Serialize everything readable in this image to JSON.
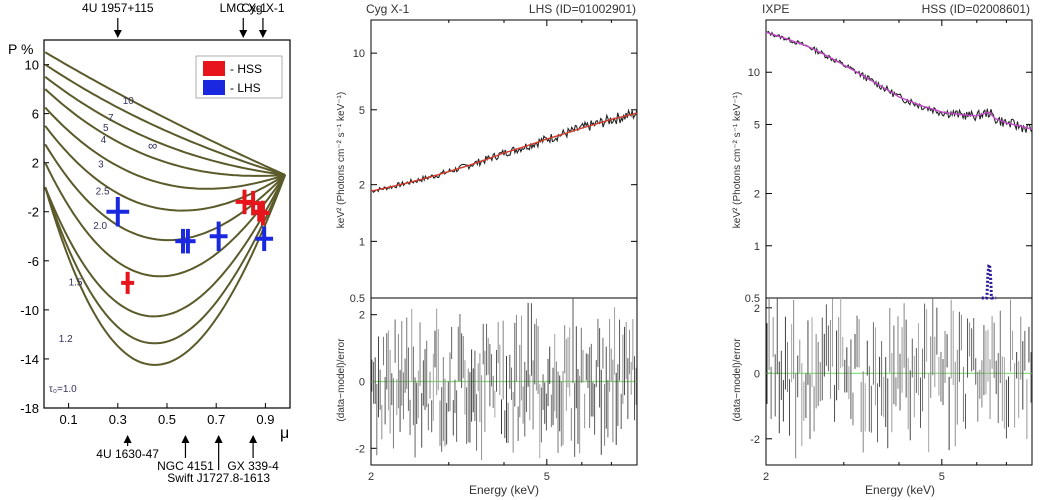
{
  "chart_data": [
    {
      "type": "line",
      "title": "",
      "ylabel": "P %",
      "xlabel": "μ",
      "xlim": [
        0,
        1
      ],
      "ylim": [
        -18,
        12
      ],
      "xticks": [
        0.1,
        0.3,
        0.5,
        0.7,
        0.9
      ],
      "xtick_labels": [
        "0.1",
        "0.3",
        "0.5",
        "0.7",
        "0.9"
      ],
      "yticks": [
        10,
        6,
        2,
        -2,
        -6,
        -10,
        -14,
        -18
      ],
      "ytick_labels": [
        "10",
        "6",
        "2",
        "-2",
        "-6",
        "-10",
        "-14",
        "-18"
      ],
      "curves": [
        {
          "label": "τ₀=1.0",
          "end": 0,
          "depth": 17.0
        },
        {
          "label": "1.2",
          "end": 0,
          "depth": 15.0
        },
        {
          "label": "",
          "end": 0,
          "depth": 12.5
        },
        {
          "label": "1.5",
          "end": 2.0,
          "depth": 10.0
        },
        {
          "label": "2.0",
          "end": 3.5,
          "depth": 7.5
        },
        {
          "label": "2.5",
          "end": 5.0,
          "depth": 5.5
        },
        {
          "label": "3",
          "end": 6.5,
          "depth": 4.0
        },
        {
          "label": "4",
          "end": 8.0,
          "depth": 2.8
        },
        {
          "label": "5",
          "end": 9.0,
          "depth": 1.8
        },
        {
          "label": "7",
          "end": 10.0,
          "depth": 1.0
        },
        {
          "label": "10",
          "end": 11.0,
          "depth": 0.4
        }
      ],
      "curve_end": {
        "mu": 0.98,
        "p": 1.0
      },
      "inf_label": "∞",
      "tau_label_positions": [
        {
          "label": "10",
          "mu": 0.32,
          "p": 6.8
        },
        {
          "label": "7",
          "mu": 0.26,
          "p": 5.4
        },
        {
          "label": "5",
          "mu": 0.24,
          "p": 4.6
        },
        {
          "label": "4",
          "mu": 0.23,
          "p": 3.6
        },
        {
          "label": "3",
          "mu": 0.22,
          "p": 1.6
        },
        {
          "label": "2.5",
          "mu": 0.21,
          "p": -0.6
        },
        {
          "label": "2.0",
          "mu": 0.2,
          "p": -3.4
        },
        {
          "label": "1.5",
          "mu": 0.1,
          "p": -8.0
        },
        {
          "label": "1.2",
          "mu": 0.06,
          "p": -12.6
        },
        {
          "label": "τ₀=1.0",
          "mu": 0.02,
          "p": -16.7
        }
      ],
      "hss_points": [
        {
          "mu": 0.34,
          "p": -7.8,
          "ex": 0.01,
          "ey": 0.9
        },
        {
          "mu": 0.815,
          "p": -1.2,
          "ex": 0.02,
          "ey": 1.0
        },
        {
          "mu": 0.85,
          "p": -1.3,
          "ex": 0.015,
          "ey": 1.0
        },
        {
          "mu": 0.875,
          "p": -2.0,
          "ex": 0.015,
          "ey": 0.8
        },
        {
          "mu": 0.89,
          "p": -2.1,
          "ex": 0.01,
          "ey": 1.0
        }
      ],
      "lhs_points": [
        {
          "mu": 0.3,
          "p": -2.0,
          "ex": 0.03,
          "ey": 1.2
        },
        {
          "mu": 0.565,
          "p": -4.4,
          "ex": 0.015,
          "ey": 1.0
        },
        {
          "mu": 0.585,
          "p": -4.4,
          "ex": 0.015,
          "ey": 1.0
        },
        {
          "mu": 0.71,
          "p": -4.0,
          "ex": 0.02,
          "ey": 1.2
        },
        {
          "mu": 0.895,
          "p": -4.2,
          "ex": 0.02,
          "ey": 1.0
        }
      ],
      "legend": [
        {
          "name": "- HSS",
          "color": "#e8141c"
        },
        {
          "name": "- LHS",
          "color": "#1a29e0"
        }
      ],
      "top_annotations": [
        {
          "label": "4U 1957+115",
          "mu": 0.3
        },
        {
          "label": "LMC X-1",
          "mu": 0.81
        },
        {
          "label": "Cyg X-1",
          "mu": 0.89
        }
      ],
      "bottom_annotations": [
        {
          "label": "4U 1630-47",
          "mu": 0.34,
          "row": 1
        },
        {
          "label": "NGC 4151",
          "mu": 0.575,
          "row": 2
        },
        {
          "label": "Swift J1727.8-1613",
          "mu": 0.71,
          "row": 3
        },
        {
          "label": "GX 339-4",
          "mu": 0.85,
          "row": 2
        }
      ]
    },
    {
      "type": "line",
      "title_left": "Cyg X-1",
      "title_right": "LHS (ID=01002901)",
      "xlabel": "Energy (keV)",
      "ylabel_top": "keV² (Photons cm⁻² s⁻¹ keV⁻¹)",
      "ylabel_bottom": "(data−model)/error",
      "xlim": [
        2,
        8
      ],
      "ylim_top": [
        0.5,
        15
      ],
      "ylim_bottom": [
        -2.5,
        2.5
      ],
      "xticks": [
        2,
        5
      ],
      "yticks_top": [
        0.5,
        1,
        2,
        5,
        10
      ],
      "yticks_bottom": [
        -2,
        0,
        2
      ],
      "spectrum": [
        [
          2.0,
          1.85
        ],
        [
          3.0,
          2.35
        ],
        [
          4.0,
          2.95
        ],
        [
          5.0,
          3.5
        ],
        [
          6.0,
          4.0
        ],
        [
          7.0,
          4.45
        ],
        [
          8.0,
          4.8
        ]
      ],
      "residual_seed": 7,
      "residual_points": 160
    },
    {
      "type": "line",
      "title_left": "IXPE",
      "title_right": "HSS (ID=02008601)",
      "xlabel": "Energy (keV)",
      "ylabel_top": "keV² (Photons cm⁻² s⁻¹ keV⁻¹)",
      "ylabel_bottom": "(data−model)/error",
      "xlim": [
        2,
        8
      ],
      "ylim_top": [
        0.5,
        20
      ],
      "ylim_bottom": [
        -2.8,
        2.3
      ],
      "xticks": [
        2,
        5
      ],
      "yticks_top": [
        0.5,
        1,
        2,
        5,
        10
      ],
      "yticks_bottom": [
        -2,
        0,
        2
      ],
      "spectrum": [
        [
          2.0,
          17.0
        ],
        [
          2.5,
          14.0
        ],
        [
          3.0,
          11.0
        ],
        [
          3.5,
          8.8
        ],
        [
          4.0,
          7.2
        ],
        [
          4.5,
          6.4
        ],
        [
          5.0,
          5.9
        ],
        [
          5.5,
          5.7
        ],
        [
          6.0,
          5.6
        ],
        [
          6.4,
          5.9
        ],
        [
          6.6,
          5.4
        ],
        [
          7.0,
          5.1
        ],
        [
          7.5,
          4.9
        ],
        [
          8.0,
          4.7
        ]
      ],
      "line_feature": {
        "center": 6.4,
        "sigma": 0.08,
        "peak": 0.78
      },
      "residual_seed": 13,
      "residual_points": 130
    }
  ]
}
